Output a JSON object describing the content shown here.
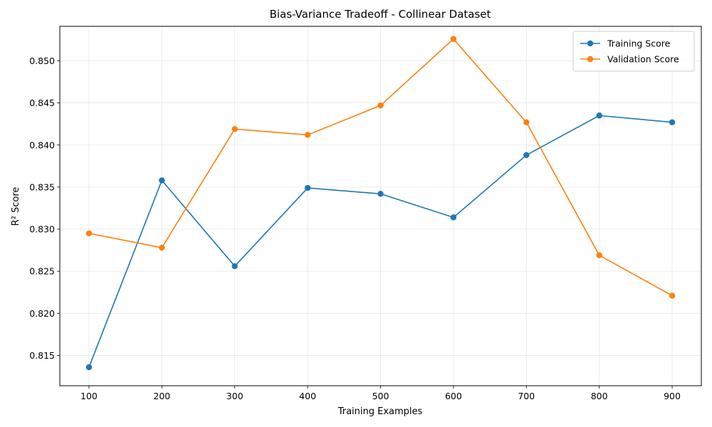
{
  "chart_data": {
    "type": "line",
    "title": "Bias-Variance Tradeoff - Collinear Dataset",
    "xlabel": "Training Examples",
    "ylabel": "R² Score",
    "x": [
      100,
      200,
      300,
      400,
      500,
      600,
      700,
      800,
      900
    ],
    "xlim": [
      60,
      940
    ],
    "ylim": [
      0.8114,
      0.8541
    ],
    "xticks": [
      100,
      200,
      300,
      400,
      500,
      600,
      700,
      800,
      900
    ],
    "yticks": [
      0.815,
      0.82,
      0.825,
      0.83,
      0.835,
      0.84,
      0.845,
      0.85
    ],
    "ytick_labels": [
      "0.815",
      "0.820",
      "0.825",
      "0.830",
      "0.835",
      "0.840",
      "0.845",
      "0.850"
    ],
    "grid": true,
    "legend_position": "top-right",
    "series": [
      {
        "name": "Training Score",
        "color": "#1f77b4",
        "marker": "circle",
        "values": [
          0.8136,
          0.8358,
          0.8256,
          0.8349,
          0.8342,
          0.8314,
          0.8388,
          0.8435,
          0.8427
        ]
      },
      {
        "name": "Validation Score",
        "color": "#ff7f0e",
        "marker": "circle",
        "values": [
          0.8295,
          0.8278,
          0.8419,
          0.8412,
          0.8447,
          0.8526,
          0.8427,
          0.8269,
          0.8221
        ]
      }
    ]
  }
}
